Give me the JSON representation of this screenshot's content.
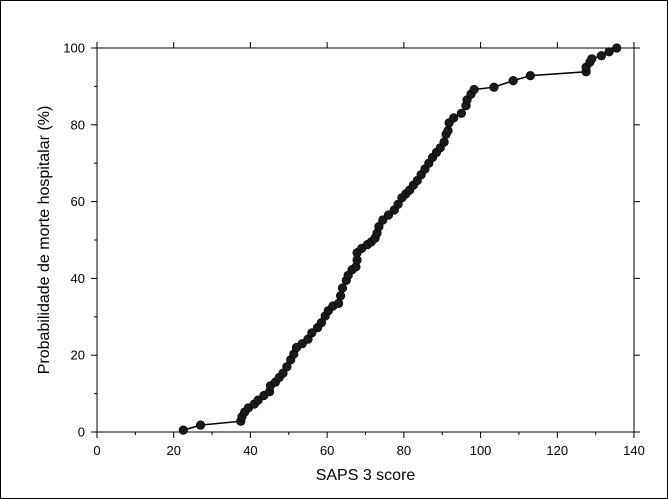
{
  "chart_data": {
    "type": "scatter",
    "title": "",
    "xlabel": "SAPS 3 score",
    "ylabel": "Probabilidade de morte hospitalar (%)",
    "xlim": [
      0,
      140
    ],
    "ylim": [
      0,
      100
    ],
    "x_ticks": [
      0,
      20,
      40,
      60,
      80,
      100,
      120,
      140
    ],
    "y_ticks": [
      0,
      20,
      40,
      60,
      80,
      100
    ],
    "x_tick_labels": [
      "0",
      "20",
      "40",
      "60",
      "80",
      "100",
      "120",
      "140"
    ],
    "y_tick_labels": [
      "0",
      "20",
      "40",
      "60",
      "80",
      "100"
    ],
    "grid": false,
    "legend": "none",
    "line_connected": true,
    "colors": {
      "marker": "#1a1a1a",
      "line": "#000000",
      "axis": "#000000"
    },
    "series": [
      {
        "points": [
          [
            22.5,
            0.5
          ],
          [
            27,
            1.8
          ],
          [
            37.5,
            2.8
          ],
          [
            37.8,
            4.0
          ],
          [
            38.5,
            5.2
          ],
          [
            39.5,
            6.3
          ],
          [
            41,
            7.3
          ],
          [
            42,
            8.3
          ],
          [
            43.5,
            9.5
          ],
          [
            45,
            10.5
          ],
          [
            45.2,
            12.0
          ],
          [
            46.5,
            13.0
          ],
          [
            47.5,
            14.2
          ],
          [
            48.5,
            15.3
          ],
          [
            49.5,
            17.0
          ],
          [
            50.5,
            18.8
          ],
          [
            51.3,
            20.3
          ],
          [
            52,
            22.0
          ],
          [
            53.5,
            23.0
          ],
          [
            55,
            24.2
          ],
          [
            56,
            25.8
          ],
          [
            57.5,
            27.2
          ],
          [
            58.5,
            28.5
          ],
          [
            59.5,
            30.2
          ],
          [
            60.3,
            31.6
          ],
          [
            61.5,
            32.8
          ],
          [
            63,
            33.5
          ],
          [
            63.5,
            35.5
          ],
          [
            64,
            37.5
          ],
          [
            65,
            39.5
          ],
          [
            65.5,
            40.8
          ],
          [
            66.5,
            42.3
          ],
          [
            67.5,
            43.0
          ],
          [
            67.8,
            44.8
          ],
          [
            67.8,
            46.7
          ],
          [
            69,
            47.8
          ],
          [
            70.5,
            48.8
          ],
          [
            71.5,
            49.5
          ],
          [
            72.5,
            50.5
          ],
          [
            73,
            51.8
          ],
          [
            73.5,
            53.5
          ],
          [
            74.5,
            55.2
          ],
          [
            76,
            56.5
          ],
          [
            77.5,
            57.8
          ],
          [
            78.5,
            59.3
          ],
          [
            79.5,
            61.0
          ],
          [
            80.5,
            62.0
          ],
          [
            81.5,
            63.0
          ],
          [
            82.5,
            64.3
          ],
          [
            83.5,
            65.5
          ],
          [
            84.5,
            67.0
          ],
          [
            85.5,
            68.5
          ],
          [
            86.5,
            70.0
          ],
          [
            87.5,
            71.5
          ],
          [
            88.5,
            72.8
          ],
          [
            89.5,
            74.0
          ],
          [
            90.5,
            75.5
          ],
          [
            91,
            77.5
          ],
          [
            91.5,
            78.5
          ],
          [
            91.8,
            80.5
          ],
          [
            93,
            81.8
          ],
          [
            95,
            83.0
          ],
          [
            96.2,
            85.0
          ],
          [
            96.5,
            86.5
          ],
          [
            97.5,
            88.0
          ],
          [
            98.3,
            89.2
          ],
          [
            103.5,
            89.8
          ],
          [
            108.5,
            91.5
          ],
          [
            113,
            92.8
          ],
          [
            127.5,
            93.8
          ],
          [
            127.5,
            95.0
          ],
          [
            128.5,
            96.3
          ],
          [
            129,
            97.2
          ],
          [
            131.5,
            98.0
          ],
          [
            133.5,
            99.0
          ],
          [
            135.5,
            100.0
          ]
        ]
      }
    ]
  }
}
